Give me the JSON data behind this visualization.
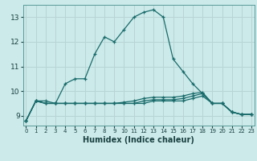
{
  "xlabel": "Humidex (Indice chaleur)",
  "bg_color": "#cceaea",
  "grid_color": "#b8d4d4",
  "line_color": "#1a6b6b",
  "x_ticks": [
    0,
    1,
    2,
    3,
    4,
    5,
    6,
    7,
    8,
    9,
    10,
    11,
    12,
    13,
    14,
    15,
    16,
    17,
    18,
    19,
    20,
    21,
    22,
    23
  ],
  "y_ticks": [
    9,
    10,
    11,
    12,
    13
  ],
  "ylim": [
    8.6,
    13.5
  ],
  "xlim": [
    -0.3,
    23.3
  ],
  "series1": {
    "x": [
      0,
      1,
      2,
      3,
      4,
      5,
      6,
      7,
      8,
      9,
      10,
      11,
      12,
      13,
      14,
      15,
      16,
      17,
      18,
      19,
      20,
      21,
      22,
      23
    ],
    "y": [
      8.8,
      9.6,
      9.6,
      9.5,
      10.3,
      10.5,
      10.5,
      11.5,
      12.2,
      12.0,
      12.5,
      13.0,
      13.2,
      13.3,
      13.0,
      11.3,
      10.8,
      10.3,
      9.9,
      9.5,
      9.5,
      9.15,
      9.05,
      9.05
    ]
  },
  "series2": {
    "x": [
      0,
      1,
      2,
      3,
      4,
      5,
      6,
      7,
      8,
      9,
      10,
      11,
      12,
      13,
      14,
      15,
      16,
      17,
      18,
      19,
      20,
      21,
      22,
      23
    ],
    "y": [
      8.8,
      9.6,
      9.5,
      9.5,
      9.5,
      9.5,
      9.5,
      9.5,
      9.5,
      9.5,
      9.5,
      9.5,
      9.5,
      9.6,
      9.6,
      9.6,
      9.6,
      9.7,
      9.8,
      9.5,
      9.5,
      9.15,
      9.05,
      9.05
    ]
  },
  "series3": {
    "x": [
      0,
      1,
      2,
      3,
      4,
      5,
      6,
      7,
      8,
      9,
      10,
      11,
      12,
      13,
      14,
      15,
      16,
      17,
      18,
      19,
      20,
      21,
      22,
      23
    ],
    "y": [
      8.8,
      9.6,
      9.5,
      9.5,
      9.5,
      9.5,
      9.5,
      9.5,
      9.5,
      9.5,
      9.5,
      9.5,
      9.6,
      9.65,
      9.65,
      9.65,
      9.7,
      9.8,
      9.9,
      9.5,
      9.5,
      9.15,
      9.05,
      9.05
    ]
  },
  "series4": {
    "x": [
      0,
      1,
      2,
      3,
      4,
      5,
      6,
      7,
      8,
      9,
      10,
      11,
      12,
      13,
      14,
      15,
      16,
      17,
      18,
      19,
      20,
      21,
      22,
      23
    ],
    "y": [
      8.8,
      9.6,
      9.5,
      9.5,
      9.5,
      9.5,
      9.5,
      9.5,
      9.5,
      9.5,
      9.55,
      9.6,
      9.7,
      9.75,
      9.75,
      9.75,
      9.8,
      9.9,
      9.95,
      9.5,
      9.5,
      9.15,
      9.05,
      9.05
    ]
  }
}
